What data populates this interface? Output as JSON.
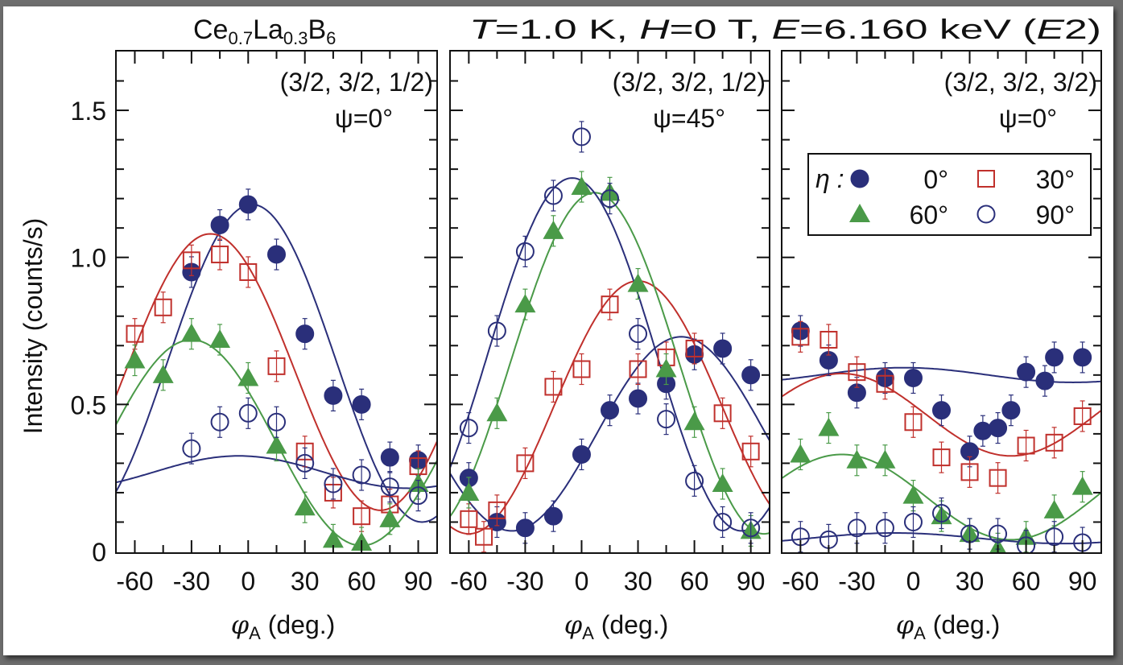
{
  "chart_data": {
    "type": "scatter",
    "title_left": "Ce0.7La0.3B6",
    "title_left_parts": {
      "a": "Ce",
      "s1": "0.7",
      "b": "La",
      "s2": "0.3",
      "c": "B",
      "s3": "6"
    },
    "title_right": "T=1.0 K,  H=0 T,  E=6.160 keV (E2)",
    "title_right_parts": {
      "T": "T",
      "tv": "=1.0 K,  ",
      "H": "H",
      "hv": "=0 T,  ",
      "E": "E",
      "ev": "=6.160 keV (",
      "E2": "E",
      "e2v": "2)"
    },
    "ylabel": "Intensity  (counts/s)",
    "xlabel_symbol": "φ",
    "xlabel_sub": "A",
    "xlabel_unit": "(deg.)",
    "xlim": [
      -70,
      100
    ],
    "ylim": [
      0,
      1.7
    ],
    "xticks": [
      -60,
      -30,
      0,
      30,
      60,
      90
    ],
    "xtick_labels": [
      "-60",
      "-30",
      "0",
      "30",
      "60",
      "90"
    ],
    "yticks": [
      0,
      0.5,
      1.0,
      1.5
    ],
    "ytick_labels": [
      "0",
      "0.5",
      "1.0",
      "1.5"
    ],
    "legend": {
      "placement": "panel-3 upper-right",
      "title": "η :",
      "entries": [
        {
          "label": "0°",
          "marker": "filled-circle",
          "color": "#2a2f7a"
        },
        {
          "label": "30°",
          "marker": "open-square",
          "color": "#c0302c"
        },
        {
          "label": "60°",
          "marker": "filled-triangle",
          "color": "#4a9a48"
        },
        {
          "label": "90°",
          "marker": "open-circle",
          "color": "#2a2f7a"
        }
      ]
    },
    "panels": [
      {
        "reflection": "(3/2, 3/2, 1/2)",
        "psi": "ψ=0°",
        "series": [
          {
            "name": "0°",
            "x": [
              -30,
              -15,
              0,
              15,
              30,
              45,
              60,
              75,
              90
            ],
            "y": [
              0.95,
              1.11,
              1.18,
              1.01,
              0.74,
              0.53,
              0.5,
              0.32,
              0.31
            ],
            "fit": {
              "offset": 0.64,
              "amp": 0.54,
              "phase": 2
            }
          },
          {
            "name": "30°",
            "x": [
              -60,
              -45,
              -30,
              -15,
              0,
              15,
              30,
              45,
              60,
              75,
              90
            ],
            "y": [
              0.74,
              0.83,
              0.99,
              1.01,
              0.95,
              0.63,
              0.34,
              0.2,
              0.12,
              0.16,
              0.29
            ],
            "fit": {
              "offset": 0.61,
              "amp": 0.47,
              "phase": -20
            }
          },
          {
            "name": "60°",
            "x": [
              -60,
              -45,
              -30,
              -15,
              0,
              15,
              30,
              45,
              60,
              75,
              90
            ],
            "y": [
              0.65,
              0.6,
              0.74,
              0.72,
              0.59,
              0.36,
              0.15,
              0.04,
              0.03,
              0.11,
              0.23
            ],
            "fit": {
              "offset": 0.37,
              "amp": 0.35,
              "phase": -30
            }
          },
          {
            "name": "90°",
            "x": [
              -30,
              -15,
              0,
              15,
              30,
              45,
              60,
              75,
              90
            ],
            "y": [
              0.35,
              0.44,
              0.47,
              0.44,
              0.3,
              0.23,
              0.26,
              0.22,
              0.19
            ],
            "fit": {
              "offset": 0.27,
              "amp": 0.055,
              "phase": -5
            }
          }
        ]
      },
      {
        "reflection": "(3/2, 3/2, 1/2)",
        "psi": "ψ=45°",
        "series": [
          {
            "name": "0°",
            "x": [
              -60,
              -45,
              -30,
              -15,
              0,
              15,
              30,
              45,
              60,
              75,
              90
            ],
            "y": [
              0.25,
              0.1,
              0.08,
              0.12,
              0.33,
              0.48,
              0.52,
              0.57,
              0.67,
              0.69,
              0.6
            ],
            "fit": {
              "offset": 0.4,
              "amp": 0.33,
              "phase": 53
            }
          },
          {
            "name": "30°",
            "x": [
              -60,
              -52,
              -45,
              -30,
              -15,
              0,
              15,
              30,
              45,
              60,
              75,
              90
            ],
            "y": [
              0.11,
              0.05,
              0.14,
              0.3,
              0.56,
              0.62,
              0.84,
              0.62,
              0.66,
              0.69,
              0.47,
              0.34
            ],
            "fit": {
              "offset": 0.49,
              "amp": 0.43,
              "phase": 30
            }
          },
          {
            "name": "60°",
            "x": [
              -60,
              -45,
              -30,
              -15,
              0,
              15,
              30,
              45,
              60,
              75,
              90
            ],
            "y": [
              0.2,
              0.47,
              0.84,
              1.09,
              1.24,
              1.22,
              0.91,
              0.62,
              0.44,
              0.23,
              0.07
            ],
            "fit": {
              "offset": 0.64,
              "amp": 0.58,
              "phase": 7
            }
          },
          {
            "name": "90°",
            "x": [
              -60,
              -45,
              -30,
              -15,
              0,
              15,
              30,
              45,
              60,
              75,
              90
            ],
            "y": [
              0.42,
              0.75,
              1.02,
              1.21,
              1.41,
              1.2,
              0.74,
              0.45,
              0.24,
              0.1,
              0.08
            ],
            "fit": {
              "offset": 0.67,
              "amp": 0.6,
              "phase": -5
            }
          }
        ]
      },
      {
        "reflection": "(3/2, 3/2, 3/2)",
        "psi": "ψ=0°",
        "series": [
          {
            "name": "0°",
            "x": [
              -60,
              -45,
              -30,
              -15,
              0,
              15,
              30,
              37,
              45,
              52,
              60,
              70,
              75,
              90
            ],
            "y": [
              0.75,
              0.65,
              0.54,
              0.59,
              0.59,
              0.48,
              0.34,
              0.41,
              0.42,
              0.48,
              0.61,
              0.58,
              0.66,
              0.66
            ],
            "fit": {
              "offset": 0.6,
              "amp": 0.025,
              "phase": -5
            }
          },
          {
            "name": "30°",
            "x": [
              -60,
              -45,
              -30,
              -15,
              0,
              15,
              30,
              45,
              60,
              75,
              90
            ],
            "y": [
              0.73,
              0.72,
              0.61,
              0.57,
              0.44,
              0.32,
              0.27,
              0.25,
              0.36,
              0.37,
              0.46
            ],
            "fit": {
              "offset": 0.465,
              "amp": 0.14,
              "phase": -38
            }
          },
          {
            "name": "60°",
            "x": [
              -60,
              -45,
              -30,
              -15,
              0,
              15,
              30,
              45,
              60,
              75,
              90
            ],
            "y": [
              0.33,
              0.42,
              0.31,
              0.31,
              0.19,
              0.12,
              0.06,
              0.01,
              0.05,
              0.14,
              0.22
            ],
            "fit": {
              "offset": 0.185,
              "amp": 0.145,
              "phase": -38
            }
          },
          {
            "name": "90°",
            "x": [
              -60,
              -45,
              -30,
              -15,
              0,
              15,
              30,
              45,
              60,
              75,
              90
            ],
            "y": [
              0.05,
              0.04,
              0.08,
              0.08,
              0.1,
              0.13,
              0.06,
              0.06,
              0.02,
              0.05,
              0.03
            ],
            "fit": {
              "offset": 0.045,
              "amp": 0.018,
              "phase": -10
            }
          }
        ]
      }
    ]
  }
}
